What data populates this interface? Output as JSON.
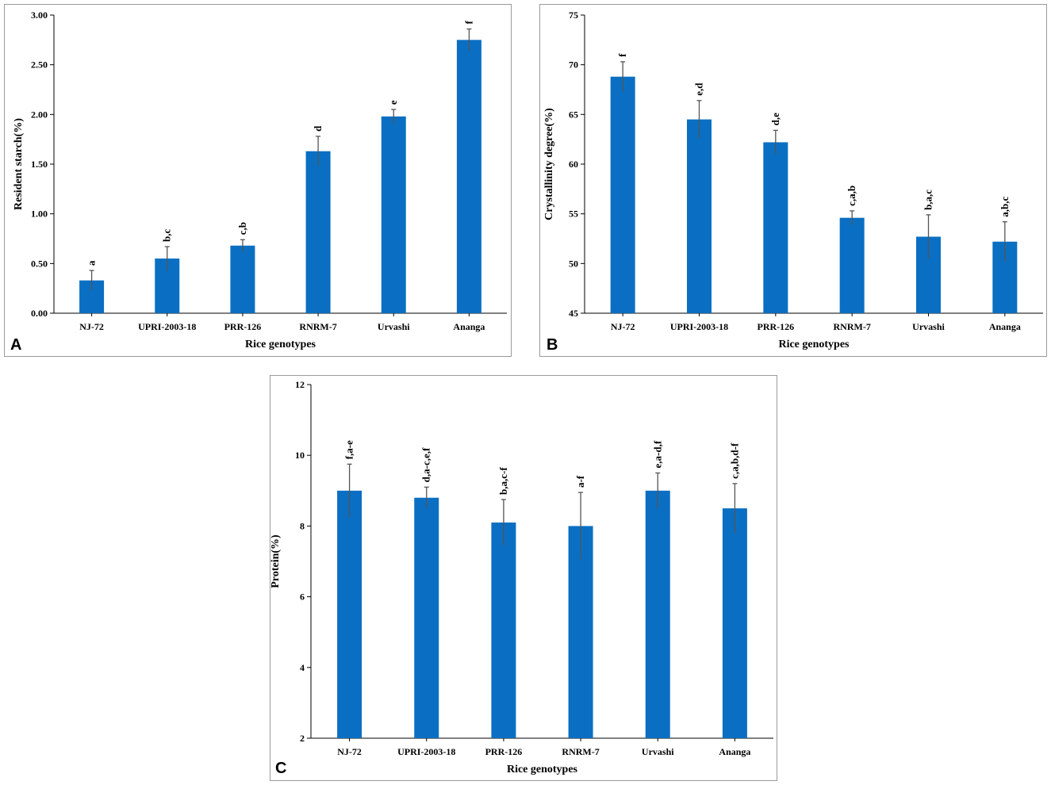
{
  "chart_data": [
    {
      "panel": "A",
      "type": "bar",
      "categories": [
        "NJ-72",
        "UPRI-2003-18",
        "PRR-126",
        "RNRM-7",
        "Urvashi",
        "Ananga"
      ],
      "values": [
        0.33,
        0.55,
        0.68,
        1.63,
        1.98,
        2.75
      ],
      "errors": [
        0.1,
        0.12,
        0.06,
        0.15,
        0.07,
        0.11
      ],
      "letters": [
        "a",
        "b,c",
        "c,b",
        "d",
        "e",
        "f"
      ],
      "ylabel": "Resident starch(%)",
      "xlabel": "Rice genotypes",
      "ylim": [
        0,
        3
      ],
      "yticks": [
        0,
        0.5,
        1,
        1.5,
        2,
        2.5,
        3
      ],
      "yticklabels": [
        "0.00",
        "0.50",
        "1.00",
        "1.50",
        "2.00",
        "2.50",
        "3.00"
      ],
      "color": "#0a6fc2"
    },
    {
      "panel": "B",
      "type": "bar",
      "categories": [
        "NJ-72",
        "UPRI-2003-18",
        "PRR-126",
        "RNRM-7",
        "Urvashi",
        "Ananga"
      ],
      "values": [
        68.8,
        64.5,
        62.2,
        54.6,
        52.7,
        52.2
      ],
      "errors": [
        1.5,
        1.9,
        1.2,
        0.7,
        2.2,
        2.0
      ],
      "letters": [
        "f",
        "e,d",
        "d,e",
        "c,a,b",
        "b,a,c",
        "a,b,c"
      ],
      "ylabel": "Crystallinity degree(%)",
      "xlabel": "Rice genotypes",
      "ylim": [
        45,
        75
      ],
      "yticks": [
        45,
        50,
        55,
        60,
        65,
        70,
        75
      ],
      "yticklabels": [
        "45",
        "50",
        "55",
        "60",
        "65",
        "70",
        "75"
      ],
      "color": "#0a6fc2"
    },
    {
      "panel": "C",
      "type": "bar",
      "categories": [
        "NJ-72",
        "UPRI-2003-18",
        "PRR-126",
        "RNRM-7",
        "Urvashi",
        "Ananga"
      ],
      "values": [
        9.0,
        8.8,
        8.1,
        8.0,
        9.0,
        8.5
      ],
      "errors": [
        0.75,
        0.3,
        0.65,
        0.95,
        0.5,
        0.7
      ],
      "letters": [
        "f,a-e",
        "d,a-c,e,f",
        "b,a,c-f",
        "a-f",
        "e,a-d,f",
        "c,a,b,d-f"
      ],
      "ylabel": "Protein(%)",
      "xlabel": "Rice genotypes",
      "ylim": [
        2,
        12
      ],
      "yticks": [
        2,
        4,
        6,
        8,
        10,
        12
      ],
      "yticklabels": [
        "2",
        "4",
        "6",
        "8",
        "10",
        "12"
      ],
      "color": "#0a6fc2"
    }
  ]
}
